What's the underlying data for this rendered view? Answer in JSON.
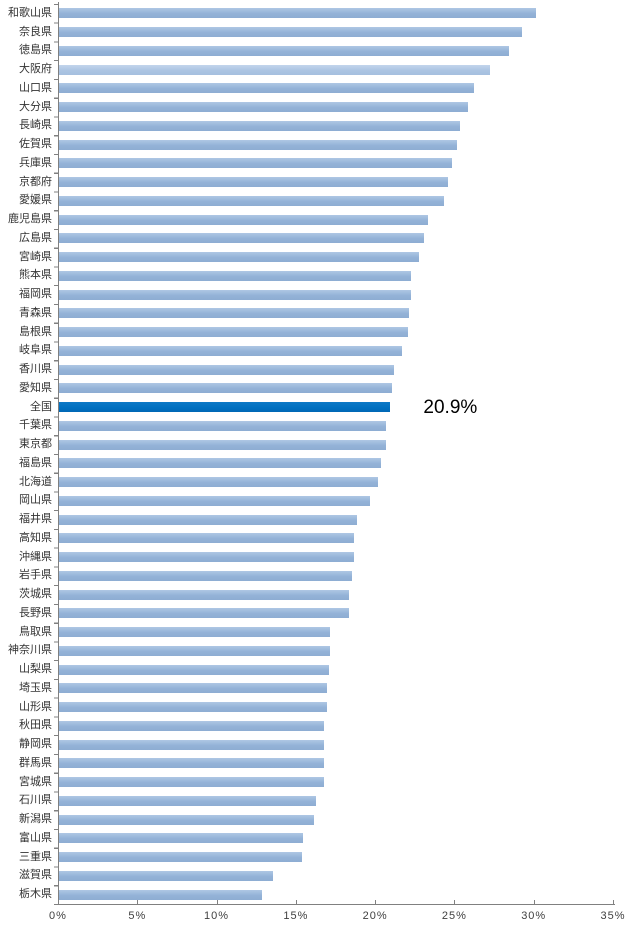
{
  "chart_data": {
    "type": "bar",
    "orientation": "horizontal",
    "title": "",
    "xlabel": "",
    "ylabel": "",
    "xlim": [
      0,
      35
    ],
    "x_tick_labels": [
      "0%",
      "5%",
      "10%",
      "15%",
      "20%",
      "25%",
      "30%",
      "35%"
    ],
    "x_tick_values": [
      0,
      5,
      10,
      15,
      20,
      25,
      30,
      35
    ],
    "unit": "%",
    "grid": false,
    "legend": "none",
    "highlight_category": "全国",
    "light_category": "大阪府",
    "annotation": {
      "category": "全国",
      "text": "20.9%"
    },
    "colors": {
      "bar": "#95B3D7",
      "bar_light": "#AEC5E2",
      "bar_highlight": "#0070C0",
      "axis": "#808080",
      "tick_label": "#404040",
      "category_label": "#333333",
      "annotation_text": "#000000"
    },
    "categories": [
      "和歌山県",
      "奈良県",
      "徳島県",
      "大阪府",
      "山口県",
      "大分県",
      "長崎県",
      "佐賀県",
      "兵庫県",
      "京都府",
      "愛媛県",
      "鹿児島県",
      "広島県",
      "宮崎県",
      "熊本県",
      "福岡県",
      "青森県",
      "島根県",
      "岐阜県",
      "香川県",
      "愛知県",
      "全国",
      "千葉県",
      "東京都",
      "福島県",
      "北海道",
      "岡山県",
      "福井県",
      "高知県",
      "沖縄県",
      "岩手県",
      "茨城県",
      "長野県",
      "鳥取県",
      "神奈川県",
      "山梨県",
      "埼玉県",
      "山形県",
      "秋田県",
      "静岡県",
      "群馬県",
      "宮城県",
      "石川県",
      "新潟県",
      "富山県",
      "三重県",
      "滋賀県",
      "栃木県"
    ],
    "values": [
      30.1,
      29.2,
      28.4,
      27.2,
      26.2,
      25.8,
      25.3,
      25.1,
      24.8,
      24.5,
      24.3,
      23.3,
      23.0,
      22.7,
      22.2,
      22.2,
      22.1,
      22.0,
      21.6,
      21.1,
      21.0,
      20.9,
      20.6,
      20.6,
      20.3,
      20.1,
      19.6,
      18.8,
      18.6,
      18.6,
      18.5,
      18.3,
      18.3,
      17.1,
      17.1,
      17.0,
      16.9,
      16.9,
      16.7,
      16.7,
      16.7,
      16.7,
      16.2,
      16.1,
      15.4,
      15.3,
      13.5,
      12.8
    ]
  }
}
